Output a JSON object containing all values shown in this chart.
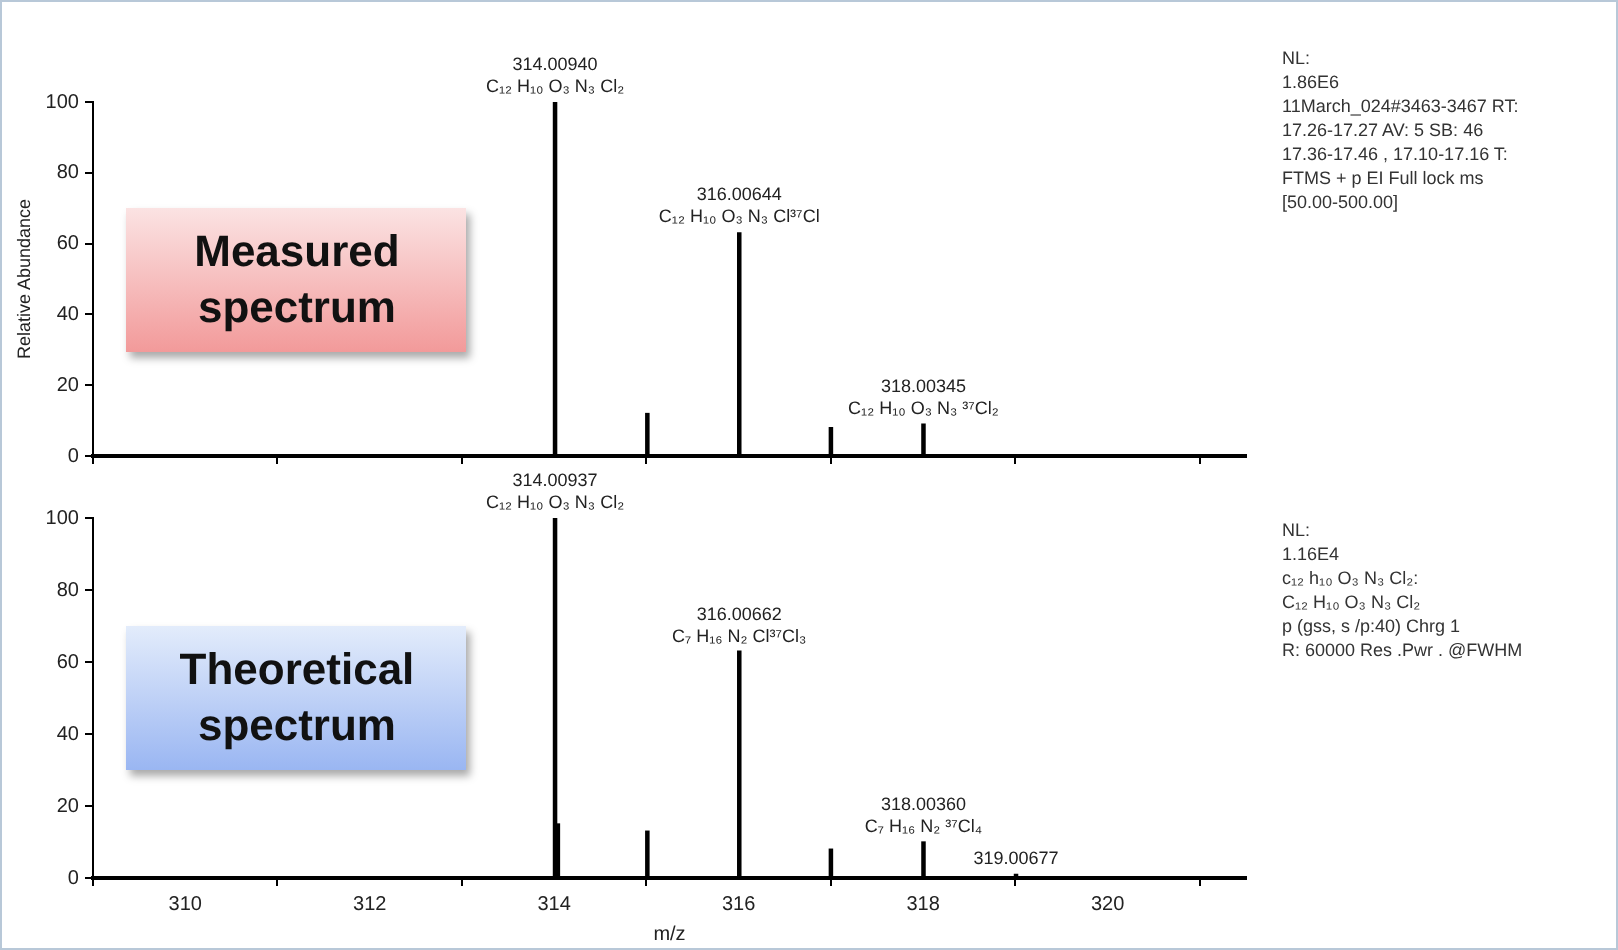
{
  "chart_data": [
    {
      "type": "bar",
      "x": [
        314.0094,
        315.01,
        316.0064,
        317.0,
        318.0035
      ],
      "values": [
        100,
        12,
        63,
        8,
        9
      ],
      "color": "#000000",
      "ylabel": "Relative Abundance",
      "xlim": [
        309,
        321.5
      ],
      "ylim": [
        0,
        100
      ],
      "yticks": [
        0,
        20,
        40,
        60,
        80,
        100
      ],
      "xticks": [
        {
          "value": 310,
          "label": null
        },
        {
          "value": 312,
          "label": null
        },
        {
          "value": 314,
          "label": null
        },
        {
          "value": 316,
          "label": null
        },
        {
          "value": 318,
          "label": null
        },
        {
          "value": 320,
          "label": null
        }
      ],
      "tick_labels": "y",
      "legend": false,
      "grid": false,
      "annotations": [
        "Measured spectrum",
        {
          "text": "314.00940\nC₁₂ H₁₀ O₃ N₃ Cl₂",
          "x": 314.0094,
          "y": 100
        },
        {
          "text": "316.00644\nC₁₂ H₁₀ O₃ N₃ Cl³⁷Cl",
          "x": 316.0064,
          "y": 63
        },
        {
          "text": "318.00345\nC₁₂ H₁₀ O₃ N₃ ³⁷Cl₂",
          "x": 318.0035,
          "y": 9
        },
        "NL:\n1.86E6\n11March_024#3463-3467 RT:\n17.26-17.27 AV: 5 SB: 46\n17.36-17.46 , 17.10-17.16 T:\nFTMS + p EI Full lock ms\n[50.00-500.00]"
      ]
    },
    {
      "type": "bar",
      "x": [
        314.0094,
        314.04,
        315.01,
        316.0066,
        317.0,
        318.0036,
        319.0068
      ],
      "values": [
        100,
        15,
        13,
        63,
        8,
        10,
        1
      ],
      "color": "#000000",
      "xlabel": "m/z",
      "xlim": [
        309,
        321.5
      ],
      "ylim": [
        0,
        100
      ],
      "yticks": [
        0,
        20,
        40,
        60,
        80,
        100
      ],
      "xticks": [
        310,
        312,
        314,
        316,
        318,
        320
      ],
      "legend": false,
      "grid": false,
      "annotations": [
        "Theoretical spectrum",
        {
          "text": "314.00937\nC₁₂ H₁₀ O₃ N₃ Cl₂",
          "x": 314.0094,
          "y": 100
        },
        {
          "text": "316.00662\nC₇ H₁₆ N₂ Cl³⁷Cl₃",
          "x": 316.0066,
          "y": 63
        },
        {
          "text": "318.00360\nC₇ H₁₆ N₂ ³⁷Cl₄",
          "x": 318.0036,
          "y": 10
        },
        {
          "text": "319.00677",
          "x": 319.0068,
          "y": 1
        },
        "NL:\n1.16E4\nc₁₂ h₁₀ O₃ N₃ Cl₂:\nC₁₂ H₁₀ O₃ N₃ Cl₂\np (gss, s /p:40) Chrg 1\nR: 60000 Res .Pwr . @FWHM"
      ]
    }
  ]
}
